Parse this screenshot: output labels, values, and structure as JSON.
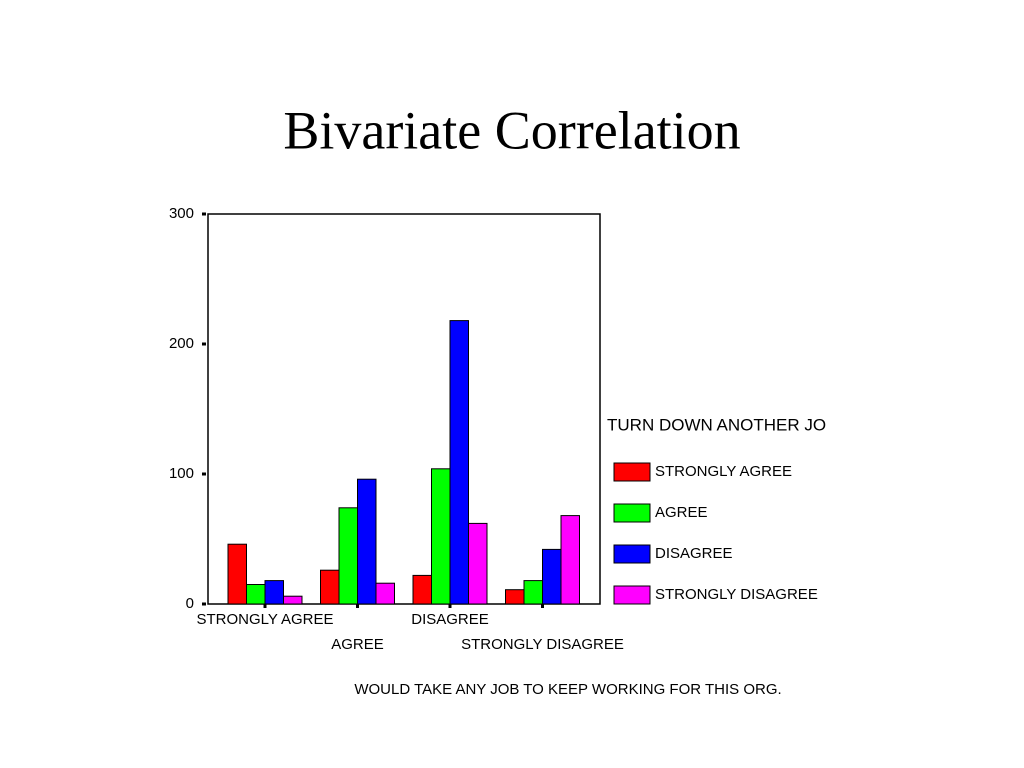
{
  "chart_data": {
    "type": "bar",
    "title": "Bivariate Correlation",
    "x_label": "WOULD TAKE ANY JOB TO KEEP WORKING FOR THIS ORG.",
    "legend_title": "TURN DOWN ANOTHER JO",
    "categories": [
      "STRONGLY AGREE",
      "AGREE",
      "DISAGREE",
      "STRONGLY DISAGREE"
    ],
    "series": [
      {
        "name": "STRONGLY AGREE",
        "color": "#ff0000",
        "values": [
          46,
          26,
          22,
          11
        ]
      },
      {
        "name": "AGREE",
        "color": "#00ff00",
        "values": [
          15,
          74,
          104,
          18
        ]
      },
      {
        "name": "DISAGREE",
        "color": "#0000ff",
        "values": [
          18,
          96,
          218,
          42
        ]
      },
      {
        "name": "STRONGLY DISAGREE",
        "color": "#ff00ff",
        "values": [
          6,
          16,
          62,
          68
        ]
      }
    ],
    "ylim": [
      0,
      300
    ],
    "yticks": [
      0,
      100,
      200,
      300
    ],
    "legend": "right"
  }
}
